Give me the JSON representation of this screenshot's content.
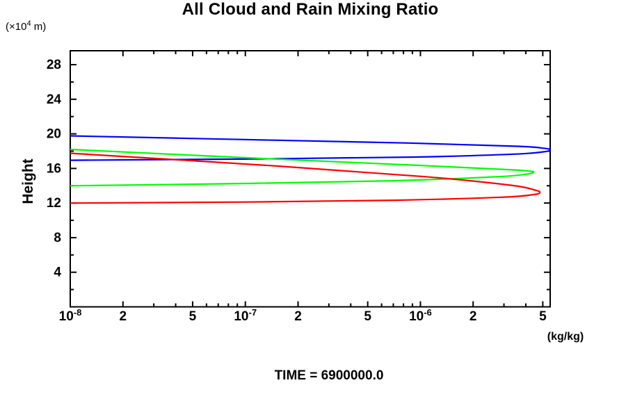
{
  "title": "All Cloud and Rain Mixing Ratio",
  "labels": {
    "y_units": {
      "prefix": "(×10",
      "exp": "4",
      "suffix": " m)"
    },
    "y_axis": "Height",
    "x_units": "(kg/kg)",
    "time": "TIME = 6900000.0"
  },
  "colors": {
    "axis": "#000000",
    "text": "#000000",
    "series_blue": "#0000ff",
    "series_green": "#00ff00",
    "series_red": "#ff0000"
  },
  "chart_data": {
    "type": "line",
    "title": "All Cloud and Rain Mixing Ratio",
    "xlabel": "(kg/kg)",
    "ylabel": "Height (×10^4 m)",
    "x_scale": "log",
    "y_scale": "linear",
    "xlim": [
      1e-08,
      5.51e-06
    ],
    "ylim": [
      0,
      29.61
    ],
    "grid": false,
    "legend": "none",
    "annotation": "TIME = 6900000.0",
    "x_ticks_labeled": [
      {
        "value": 1e-08,
        "base": "10",
        "exp": "-8"
      },
      {
        "value": 2e-08,
        "base": "2"
      },
      {
        "value": 5e-08,
        "base": "5"
      },
      {
        "value": 1e-07,
        "base": "10",
        "exp": "-7"
      },
      {
        "value": 2e-07,
        "base": "2"
      },
      {
        "value": 5e-07,
        "base": "5"
      },
      {
        "value": 1e-06,
        "base": "10",
        "exp": "-6"
      },
      {
        "value": 2e-06,
        "base": "2"
      },
      {
        "value": 5e-06,
        "base": "5"
      }
    ],
    "x_ticks_minor": [
      3e-08,
      4e-08,
      6e-08,
      7e-08,
      8e-08,
      9e-08,
      3e-07,
      4e-07,
      6e-07,
      7e-07,
      8e-07,
      9e-07,
      3e-06,
      4e-06
    ],
    "y_ticks_labeled": [
      4,
      8,
      12,
      16,
      20,
      24,
      28
    ],
    "y_ticks_minor": [
      2,
      6,
      10,
      14,
      18,
      22,
      26
    ],
    "series": [
      {
        "name": "blue-profile",
        "color": "#0000ff",
        "points": [
          [
            1e-08,
            16.95
          ],
          [
            1.25e-07,
            17.11
          ],
          [
            9.2e-07,
            17.32
          ],
          [
            3.4e-06,
            17.65
          ],
          [
            5.07e-06,
            17.93
          ],
          [
            5.51e-06,
            18.16
          ],
          [
            5.04e-06,
            18.34
          ],
          [
            3.6e-06,
            18.56
          ],
          [
            8.6e-07,
            18.94
          ],
          [
            1.16e-07,
            19.31
          ],
          [
            1e-08,
            19.77
          ]
        ]
      },
      {
        "name": "green-profile",
        "color": "#00ff00",
        "points": [
          [
            1e-08,
            14.0
          ],
          [
            1e-07,
            14.26
          ],
          [
            6.9e-07,
            14.58
          ],
          [
            2.68e-06,
            15.03
          ],
          [
            4.06e-06,
            15.35
          ],
          [
            4.43e-06,
            15.59
          ],
          [
            4.16e-06,
            15.69
          ],
          [
            3.05e-06,
            15.88
          ],
          [
            9.9e-07,
            16.35
          ],
          [
            1.46e-07,
            17.09
          ],
          [
            1e-08,
            18.2
          ]
        ]
      },
      {
        "name": "red-profile",
        "color": "#ff0000",
        "points": [
          [
            1e-08,
            12.0
          ],
          [
            1e-07,
            12.12
          ],
          [
            7.3e-07,
            12.33
          ],
          [
            2.9e-06,
            12.67
          ],
          [
            4.4e-06,
            12.97
          ],
          [
            4.81e-06,
            13.22
          ],
          [
            4.52e-06,
            13.49
          ],
          [
            3.3e-06,
            14.05
          ],
          [
            1.06e-06,
            15.05
          ],
          [
            1.54e-07,
            16.27
          ],
          [
            1e-08,
            17.76
          ]
        ]
      }
    ]
  }
}
